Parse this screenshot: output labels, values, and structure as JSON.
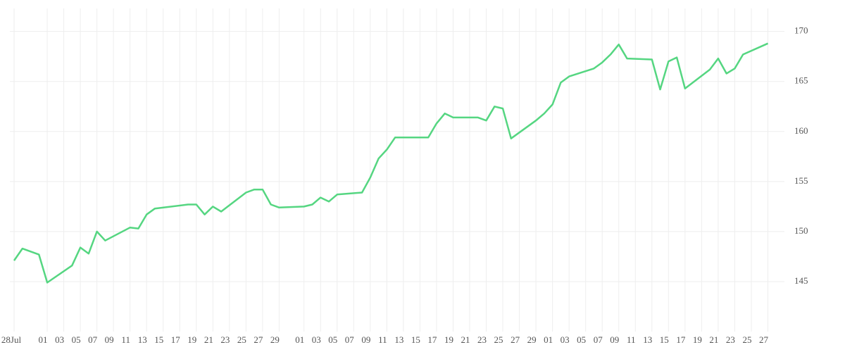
{
  "chart_data": {
    "type": "line",
    "x": [
      "07-28",
      "07-29",
      "07-31",
      "08-01",
      "08-04",
      "08-05",
      "08-06",
      "08-07",
      "08-08",
      "08-11",
      "08-12",
      "08-13",
      "08-14",
      "08-18",
      "08-19",
      "08-20",
      "08-21",
      "08-22",
      "08-25",
      "08-26",
      "08-27",
      "08-28",
      "08-29",
      "09-01",
      "09-02",
      "09-03",
      "09-04",
      "09-05",
      "09-08",
      "09-09",
      "09-10",
      "09-11",
      "09-12",
      "09-15",
      "09-16",
      "09-17",
      "09-18",
      "09-19",
      "09-22",
      "09-23",
      "09-24",
      "09-25",
      "09-26",
      "09-29",
      "09-30",
      "10-01",
      "10-02",
      "10-03",
      "10-06",
      "10-07",
      "10-08",
      "10-09",
      "10-10",
      "10-13",
      "10-14",
      "10-15",
      "10-16",
      "10-17",
      "10-20",
      "10-21",
      "10-22",
      "10-23",
      "10-24",
      "10-27"
    ],
    "series": [
      {
        "color": "#55d681",
        "values": [
          147.1,
          148.3,
          147.7,
          144.9,
          146.6,
          148.4,
          147.8,
          150.0,
          149.1,
          150.4,
          150.3,
          151.7,
          152.3,
          152.7,
          152.7,
          151.7,
          152.5,
          152.0,
          153.9,
          154.2,
          154.2,
          152.7,
          152.4,
          152.5,
          152.7,
          153.4,
          153.0,
          153.7,
          153.9,
          155.4,
          157.3,
          158.2,
          159.4,
          159.4,
          159.4,
          160.8,
          161.8,
          161.4,
          161.4,
          161.1,
          162.5,
          162.3,
          159.3,
          161.1,
          161.8,
          162.7,
          164.9,
          165.5,
          166.3,
          166.9,
          167.7,
          168.7,
          167.3,
          167.2,
          164.2,
          167.0,
          167.4,
          164.3,
          166.2,
          167.3,
          165.8,
          166.3,
          167.7,
          168.8
        ]
      }
    ],
    "xlim": [
      "07-28",
      "10-29"
    ],
    "xticks": [
      {
        "value": "07-28",
        "label": "28Jul"
      },
      {
        "value": "08-01",
        "label": "01"
      },
      {
        "value": "08-03",
        "label": "03"
      },
      {
        "value": "08-05",
        "label": "05"
      },
      {
        "value": "08-07",
        "label": "07"
      },
      {
        "value": "08-09",
        "label": "09"
      },
      {
        "value": "08-11",
        "label": "11"
      },
      {
        "value": "08-13",
        "label": "13"
      },
      {
        "value": "08-15",
        "label": "15"
      },
      {
        "value": "08-17",
        "label": "17"
      },
      {
        "value": "08-19",
        "label": "19"
      },
      {
        "value": "08-21",
        "label": "21"
      },
      {
        "value": "08-23",
        "label": "23"
      },
      {
        "value": "08-25",
        "label": "25"
      },
      {
        "value": "08-27",
        "label": "27"
      },
      {
        "value": "08-29",
        "label": "29"
      },
      {
        "value": "09-01",
        "label": "01"
      },
      {
        "value": "09-03",
        "label": "03"
      },
      {
        "value": "09-05",
        "label": "05"
      },
      {
        "value": "09-07",
        "label": "07"
      },
      {
        "value": "09-09",
        "label": "09"
      },
      {
        "value": "09-11",
        "label": "11"
      },
      {
        "value": "09-13",
        "label": "13"
      },
      {
        "value": "09-15",
        "label": "15"
      },
      {
        "value": "09-17",
        "label": "17"
      },
      {
        "value": "09-19",
        "label": "19"
      },
      {
        "value": "09-21",
        "label": "21"
      },
      {
        "value": "09-23",
        "label": "23"
      },
      {
        "value": "09-25",
        "label": "25"
      },
      {
        "value": "09-27",
        "label": "27"
      },
      {
        "value": "09-29",
        "label": "29"
      },
      {
        "value": "10-01",
        "label": "01"
      },
      {
        "value": "10-03",
        "label": "03"
      },
      {
        "value": "10-05",
        "label": "05"
      },
      {
        "value": "10-07",
        "label": "07"
      },
      {
        "value": "10-09",
        "label": "09"
      },
      {
        "value": "10-11",
        "label": "11"
      },
      {
        "value": "10-13",
        "label": "13"
      },
      {
        "value": "10-15",
        "label": "15"
      },
      {
        "value": "10-17",
        "label": "17"
      },
      {
        "value": "10-19",
        "label": "19"
      },
      {
        "value": "10-21",
        "label": "21"
      },
      {
        "value": "10-23",
        "label": "23"
      },
      {
        "value": "10-25",
        "label": "25"
      },
      {
        "value": "10-27",
        "label": "27"
      }
    ],
    "ylim": [
      140,
      172.3
    ],
    "yticks": [
      145,
      150,
      155,
      160,
      165,
      170
    ],
    "grid": true
  }
}
